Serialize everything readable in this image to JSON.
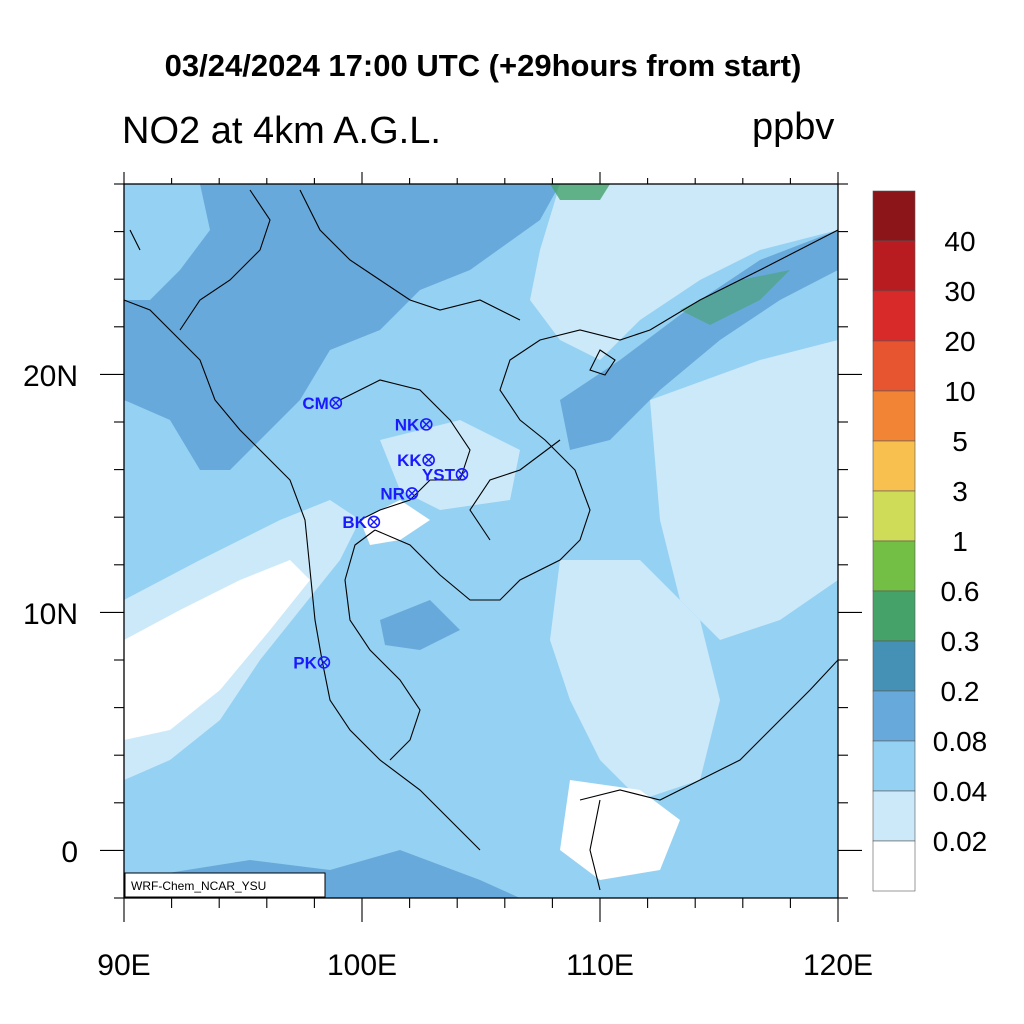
{
  "title": "03/24/2024 17:00 UTC (+29hours from start)",
  "subtitle": "NO2 at 4km A.G.L.",
  "units": "ppbv",
  "credit": "WRF-Chem_NCAR_YSU",
  "x_ticks": [
    "90E",
    "100E",
    "110E",
    "120E"
  ],
  "y_ticks": [
    "20N",
    "10N",
    "0"
  ],
  "colorbar": {
    "labels": [
      "40",
      "30",
      "20",
      "10",
      "5",
      "3",
      "1",
      "0.6",
      "0.3",
      "0.2",
      "0.08",
      "0.04",
      "0.02"
    ],
    "colors": [
      "#8c1519",
      "#b91c20",
      "#d92a2a",
      "#e65430",
      "#f28435",
      "#f8c04f",
      "#cfdc58",
      "#73bf46",
      "#45a36a",
      "#4591b5",
      "#68a9db",
      "#95d1f2",
      "#cce9fa",
      "#ffffff"
    ]
  },
  "stations": [
    {
      "label": "CM",
      "lon": 98.9,
      "lat": 18.8
    },
    {
      "label": "NK",
      "lon": 102.7,
      "lat": 17.9
    },
    {
      "label": "KK",
      "lon": 102.8,
      "lat": 16.4
    },
    {
      "label": "YST",
      "lon": 104.2,
      "lat": 15.8
    },
    {
      "label": "NR",
      "lon": 102.1,
      "lat": 15.0
    },
    {
      "label": "BK",
      "lon": 100.5,
      "lat": 13.8
    },
    {
      "label": "PK",
      "lon": 98.4,
      "lat": 7.9
    }
  ],
  "station_color": "#1a1aff",
  "map_extent": {
    "lon": [
      90,
      120
    ],
    "lat": [
      -2,
      28
    ]
  }
}
